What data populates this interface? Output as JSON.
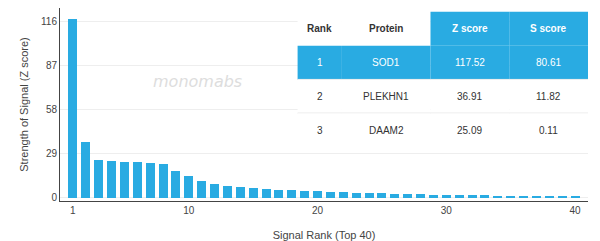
{
  "chart_data": {
    "type": "bar",
    "xlabel": "Signal Rank (Top 40)",
    "ylabel": "Strength of Signal (Z score)",
    "x": [
      1,
      2,
      3,
      4,
      5,
      6,
      7,
      8,
      9,
      10,
      11,
      12,
      13,
      14,
      15,
      16,
      17,
      18,
      19,
      20,
      21,
      22,
      23,
      24,
      25,
      26,
      27,
      28,
      29,
      30,
      31,
      32,
      33,
      34,
      35,
      36,
      37,
      38,
      39,
      40
    ],
    "values": [
      117.52,
      36.91,
      25.09,
      24.5,
      23.8,
      23.5,
      23.0,
      22.5,
      18.0,
      14.5,
      11.0,
      9.5,
      8.0,
      7.0,
      6.5,
      6.0,
      5.5,
      5.2,
      4.8,
      4.5,
      4.0,
      3.8,
      3.5,
      3.2,
      3.0,
      2.8,
      2.6,
      2.4,
      2.2,
      2.0,
      1.9,
      1.8,
      1.7,
      1.6,
      1.5,
      1.4,
      1.3,
      1.2,
      1.1,
      1.0
    ],
    "color": "#29ABE2",
    "xlim": [
      0,
      41
    ],
    "xticks": [
      1,
      10,
      20,
      30,
      40
    ],
    "ylim": [
      -2,
      125
    ],
    "yticks": [
      0,
      29,
      58,
      87,
      116
    ],
    "grid": true,
    "annotations": [
      {
        "text": "monomabs",
        "color": "#dddddd"
      }
    ],
    "table": {
      "header": [
        "Rank",
        "Protein",
        "Z score",
        "S score"
      ],
      "rows": [
        [
          "1",
          "SOD1",
          "117.52",
          "80.61"
        ],
        [
          "2",
          "PLEKHN1",
          "36.91",
          "11.82"
        ],
        [
          "3",
          "DAAM2",
          "25.09",
          "0.11"
        ]
      ],
      "color": "#29ABE2"
    }
  }
}
